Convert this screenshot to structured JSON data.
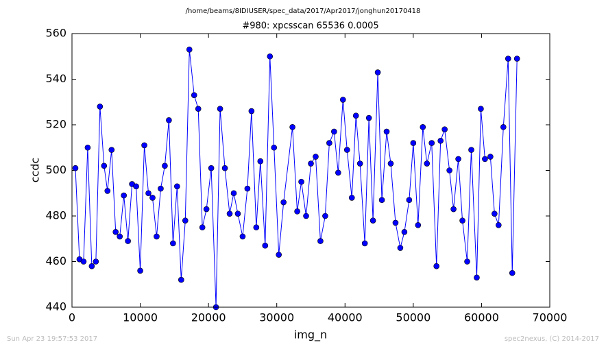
{
  "chart_data": {
    "type": "line",
    "suptitle": "/home/beams/8IDIUSER/spec_data/2017/Apr2017/jonghun20170418",
    "title": "#980: xpcsscan 65536 0.0005",
    "x_label": "img_n",
    "y_label": "ccdc",
    "footer_left": "Sun Apr 23 19:57:53 2017",
    "footer_right": "spec2nexus, (C) 2014-2017",
    "color": "#0000ff",
    "x": [
      500,
      1100,
      1700,
      2300,
      2900,
      3500,
      4100,
      4700,
      5200,
      5800,
      6400,
      7000,
      7600,
      8200,
      8800,
      9400,
      10000,
      10600,
      11200,
      11800,
      12400,
      13000,
      13600,
      14200,
      14800,
      15400,
      16000,
      16600,
      17200,
      17900,
      18500,
      19100,
      19700,
      20400,
      21100,
      21700,
      22400,
      23100,
      23700,
      24300,
      25000,
      25700,
      26300,
      27000,
      27600,
      28300,
      29000,
      29600,
      30300,
      31000,
      32300,
      33000,
      33600,
      34300,
      35000,
      35700,
      36400,
      37100,
      37700,
      38400,
      39000,
      39700,
      40300,
      41000,
      41600,
      42200,
      42900,
      43500,
      44100,
      44800,
      45400,
      46100,
      46700,
      47400,
      48100,
      48700,
      49400,
      50000,
      50700,
      51400,
      52000,
      52700,
      53400,
      54000,
      54600,
      55300,
      55900,
      56600,
      57200,
      57900,
      58500,
      59300,
      59900,
      60500,
      61300,
      61900,
      62500,
      63200,
      63900,
      64500,
      65200
    ],
    "values": [
      501,
      461,
      460,
      510,
      458,
      460,
      528,
      502,
      491,
      509,
      473,
      471,
      489,
      469,
      494,
      493,
      456,
      511,
      490,
      488,
      471,
      492,
      502,
      522,
      468,
      493,
      452,
      478,
      553,
      533,
      527,
      475,
      483,
      501,
      440,
      527,
      501,
      481,
      490,
      481,
      471,
      492,
      526,
      475,
      504,
      467,
      550,
      510,
      463,
      486,
      519,
      482,
      495,
      480,
      503,
      506,
      469,
      480,
      512,
      517,
      499,
      531,
      509,
      488,
      524,
      503,
      468,
      523,
      478,
      543,
      487,
      517,
      503,
      477,
      466,
      473,
      487,
      512,
      476,
      519,
      503,
      512,
      458,
      513,
      518,
      500,
      483,
      505,
      478,
      460,
      509,
      453,
      527,
      505,
      506,
      481,
      476,
      519,
      549,
      455,
      549
    ],
    "xlim": [
      0,
      70000
    ],
    "ylim": [
      440,
      560
    ],
    "xticks": [
      0,
      10000,
      20000,
      30000,
      40000,
      50000,
      60000,
      70000
    ],
    "yticks": [
      440,
      460,
      480,
      500,
      520,
      540,
      560
    ]
  }
}
